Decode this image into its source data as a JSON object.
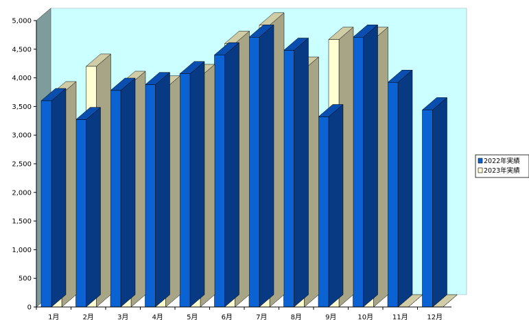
{
  "chart_data": {
    "type": "bar",
    "categories": [
      "1月",
      "2月",
      "3月",
      "4月",
      "5月",
      "6月",
      "7月",
      "8月",
      "9月",
      "10月",
      "11月",
      "12月"
    ],
    "series": [
      {
        "name": "2022年実績",
        "values": [
          3600,
          3270,
          3780,
          3880,
          4070,
          4400,
          4710,
          4480,
          3320,
          4710,
          3920,
          3440
        ]
      },
      {
        "name": "2023年実績",
        "values": [
          3720,
          4200,
          3900,
          3820,
          4020,
          4600,
          4920,
          4150,
          4670,
          4670,
          0,
          0
        ]
      }
    ],
    "ylim": [
      0,
      5000
    ],
    "yticks": [
      "0",
      "500",
      "1,000",
      "1,500",
      "2,000",
      "2,500",
      "3,000",
      "3,500",
      "4,000",
      "4,500",
      "5,000"
    ],
    "title": "",
    "xlabel": "",
    "ylabel": "",
    "grid": false,
    "legend": "right",
    "colors": {
      "series1_front": "#0b63d3",
      "series1_side": "#073a82",
      "series1_top": "#0a4fb0",
      "series2_front": "#ffffd2",
      "series2_side": "#a7a586",
      "series2_top": "#cfcca6",
      "back_wall": "#ccffff",
      "side_wall": "#7f9c9c"
    }
  }
}
